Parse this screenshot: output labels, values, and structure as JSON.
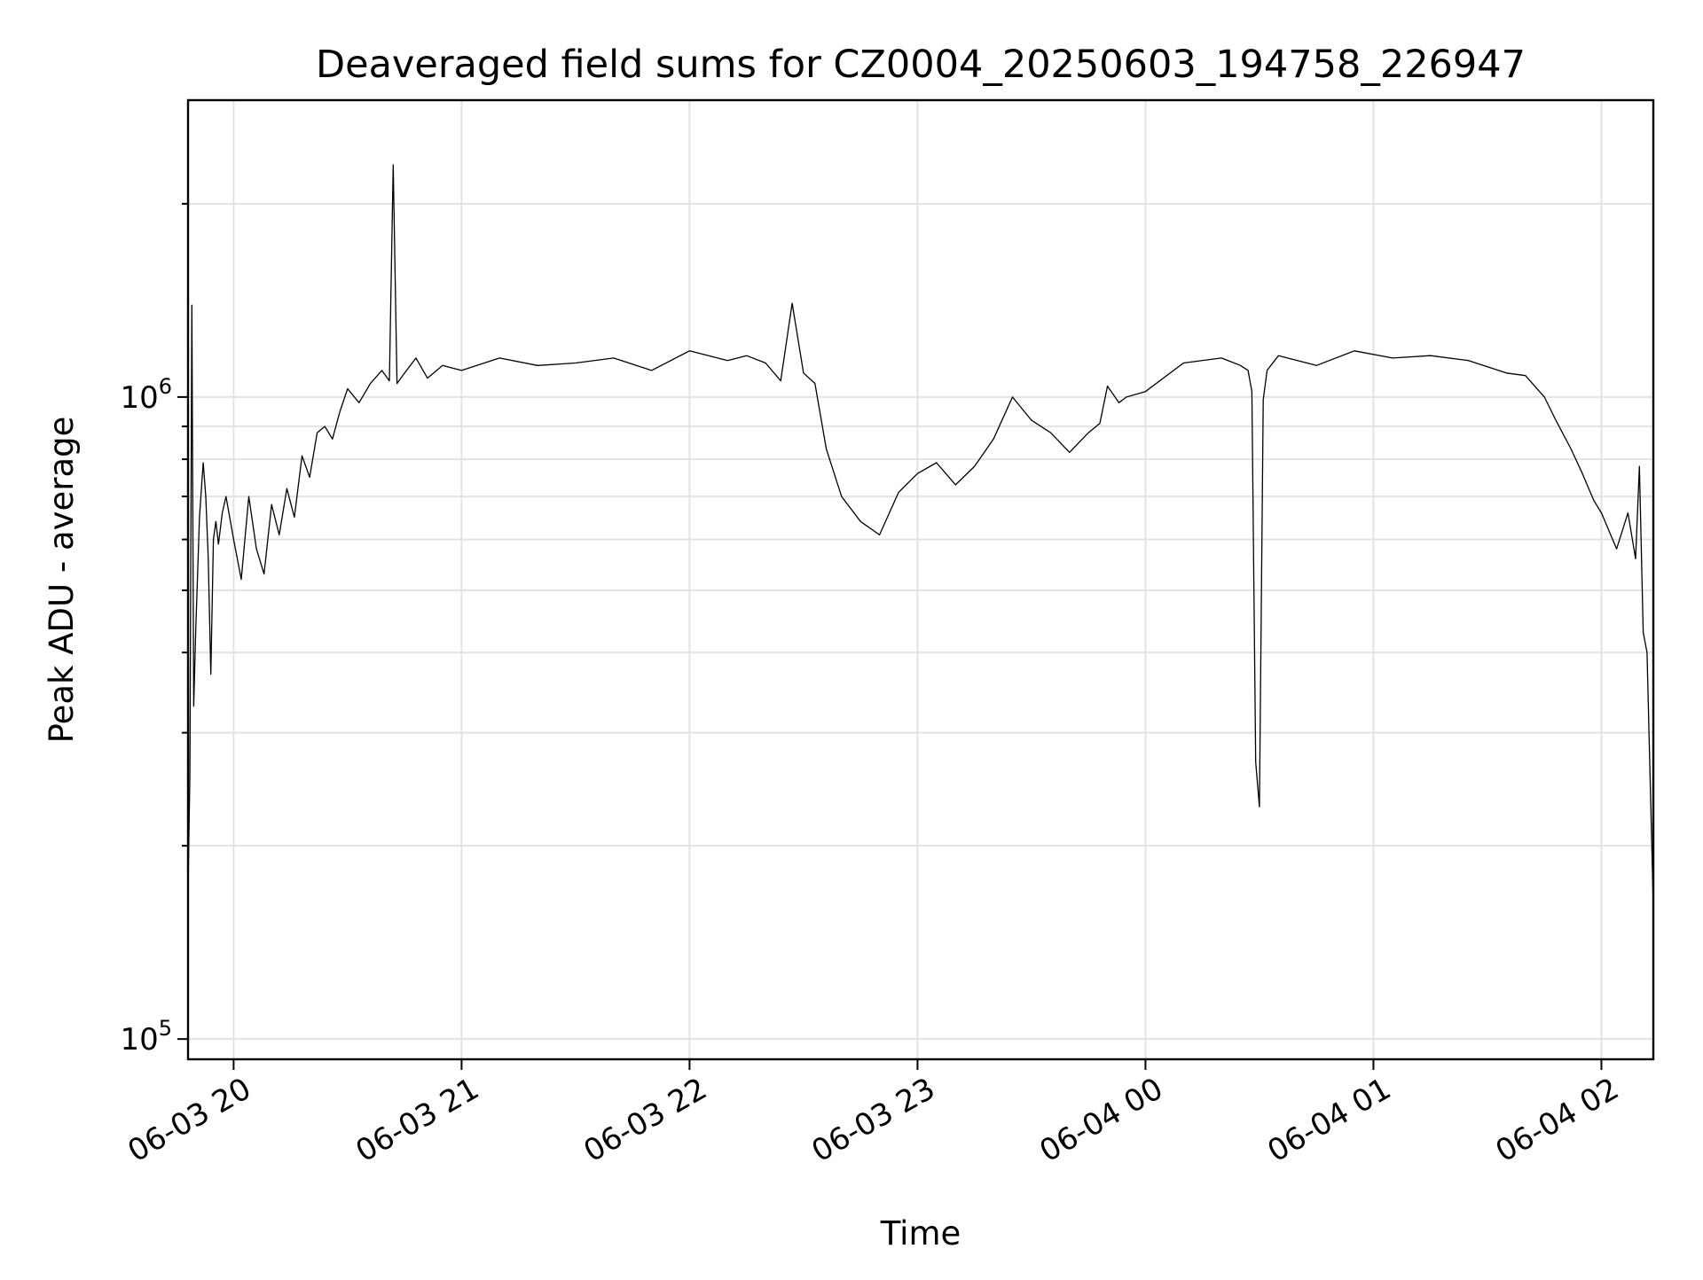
{
  "chart_data": {
    "type": "line",
    "title": "Deaveraged field sums for CZ0004_20250603_194758_226947",
    "xlabel": "Time",
    "ylabel": "Peak ADU - average",
    "x_unit": "datetime",
    "xlim": [
      "2025-06-03T19:48:00",
      "2025-06-04T02:13:40"
    ],
    "ylim": [
      93000,
      2900000
    ],
    "yscale": "log",
    "grid": true,
    "legend": "none",
    "x_ticks": [
      {
        "value": "2025-06-03T20:00:00",
        "label": "06-03 20"
      },
      {
        "value": "2025-06-03T21:00:00",
        "label": "06-03 21"
      },
      {
        "value": "2025-06-03T22:00:00",
        "label": "06-03 22"
      },
      {
        "value": "2025-06-03T23:00:00",
        "label": "06-03 23"
      },
      {
        "value": "2025-06-04T00:00:00",
        "label": "06-04 00"
      },
      {
        "value": "2025-06-04T01:00:00",
        "label": "06-04 01"
      },
      {
        "value": "2025-06-04T02:00:00",
        "label": "06-04 02"
      }
    ],
    "y_ticks": [
      {
        "value": 100000,
        "base": "10",
        "exp": "5"
      },
      {
        "value": 1000000,
        "base": "10",
        "exp": "6"
      }
    ],
    "line_color": "#000000",
    "series": [
      {
        "x": [
          "2025-06-03T19:48:00",
          "2025-06-03T19:48:30",
          "2025-06-03T19:49:00",
          "2025-06-03T19:49:30",
          "2025-06-03T19:50:00",
          "2025-06-03T19:51:00",
          "2025-06-03T19:52:00",
          "2025-06-03T19:52:40",
          "2025-06-03T19:53:20",
          "2025-06-03T19:54:00",
          "2025-06-03T19:54:40",
          "2025-06-03T19:55:20",
          "2025-06-03T19:56:00",
          "2025-06-03T19:57:00",
          "2025-06-03T19:58:00",
          "2025-06-03T20:00:00",
          "2025-06-03T20:02:00",
          "2025-06-03T20:04:00",
          "2025-06-03T20:06:00",
          "2025-06-03T20:08:00",
          "2025-06-03T20:10:00",
          "2025-06-03T20:12:00",
          "2025-06-03T20:14:00",
          "2025-06-03T20:16:00",
          "2025-06-03T20:18:00",
          "2025-06-03T20:20:00",
          "2025-06-03T20:22:00",
          "2025-06-03T20:24:00",
          "2025-06-03T20:26:00",
          "2025-06-03T20:28:00",
          "2025-06-03T20:30:00",
          "2025-06-03T20:33:00",
          "2025-06-03T20:36:00",
          "2025-06-03T20:39:00",
          "2025-06-03T20:41:00",
          "2025-06-03T20:42:00",
          "2025-06-03T20:43:00",
          "2025-06-03T20:45:00",
          "2025-06-03T20:48:00",
          "2025-06-03T20:51:00",
          "2025-06-03T20:55:00",
          "2025-06-03T21:00:00",
          "2025-06-03T21:10:00",
          "2025-06-03T21:20:00",
          "2025-06-03T21:30:00",
          "2025-06-03T21:40:00",
          "2025-06-03T21:50:00",
          "2025-06-03T22:00:00",
          "2025-06-03T22:10:00",
          "2025-06-03T22:15:00",
          "2025-06-03T22:20:00",
          "2025-06-03T22:24:00",
          "2025-06-03T22:27:00",
          "2025-06-03T22:30:00",
          "2025-06-03T22:33:00",
          "2025-06-03T22:36:00",
          "2025-06-03T22:40:00",
          "2025-06-03T22:45:00",
          "2025-06-03T22:50:00",
          "2025-06-03T22:55:00",
          "2025-06-03T23:00:00",
          "2025-06-03T23:05:00",
          "2025-06-03T23:10:00",
          "2025-06-03T23:15:00",
          "2025-06-03T23:20:00",
          "2025-06-03T23:25:00",
          "2025-06-03T23:30:00",
          "2025-06-03T23:35:00",
          "2025-06-03T23:40:00",
          "2025-06-03T23:45:00",
          "2025-06-03T23:48:00",
          "2025-06-03T23:50:00",
          "2025-06-03T23:53:00",
          "2025-06-03T23:55:00",
          "2025-06-04T00:00:00",
          "2025-06-04T00:10:00",
          "2025-06-04T00:20:00",
          "2025-06-04T00:25:00",
          "2025-06-04T00:27:00",
          "2025-06-04T00:28:00",
          "2025-06-04T00:29:00",
          "2025-06-04T00:30:00",
          "2025-06-04T00:31:00",
          "2025-06-04T00:32:00",
          "2025-06-04T00:35:00",
          "2025-06-04T00:45:00",
          "2025-06-04T00:55:00",
          "2025-06-04T01:05:00",
          "2025-06-04T01:15:00",
          "2025-06-04T01:25:00",
          "2025-06-04T01:35:00",
          "2025-06-04T01:40:00",
          "2025-06-04T01:45:00",
          "2025-06-04T01:48:00",
          "2025-06-04T01:52:00",
          "2025-06-04T01:55:00",
          "2025-06-04T01:58:00",
          "2025-06-04T02:00:00",
          "2025-06-04T02:04:00",
          "2025-06-04T02:07:00",
          "2025-06-04T02:09:00",
          "2025-06-04T02:10:00",
          "2025-06-04T02:11:00",
          "2025-06-04T02:12:00",
          "2025-06-04T02:13:40"
        ],
        "y": [
          170000,
          260000,
          1390000,
          330000,
          430000,
          650000,
          790000,
          700000,
          560000,
          370000,
          600000,
          640000,
          590000,
          660000,
          700000,
          600000,
          520000,
          700000,
          580000,
          530000,
          680000,
          610000,
          720000,
          650000,
          810000,
          750000,
          880000,
          900000,
          860000,
          950000,
          1030000,
          980000,
          1050000,
          1100000,
          1060000,
          2300000,
          1050000,
          1090000,
          1150000,
          1070000,
          1120000,
          1100000,
          1150000,
          1120000,
          1130000,
          1150000,
          1100000,
          1180000,
          1140000,
          1160000,
          1130000,
          1060000,
          1400000,
          1090000,
          1050000,
          830000,
          700000,
          640000,
          610000,
          710000,
          760000,
          790000,
          730000,
          780000,
          860000,
          1000000,
          920000,
          880000,
          820000,
          880000,
          910000,
          1040000,
          980000,
          1000000,
          1020000,
          1130000,
          1150000,
          1120000,
          1100000,
          1020000,
          270000,
          230000,
          990000,
          1100000,
          1160000,
          1120000,
          1180000,
          1150000,
          1160000,
          1140000,
          1090000,
          1080000,
          1000000,
          920000,
          830000,
          760000,
          690000,
          660000,
          580000,
          660000,
          560000,
          780000,
          430000,
          400000,
          160000
        ]
      }
    ]
  }
}
